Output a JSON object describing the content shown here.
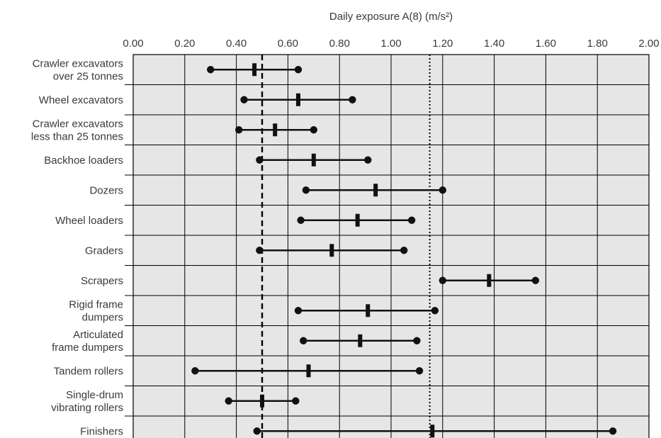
{
  "chart_data": {
    "type": "range-dot-plot",
    "xlabel": "Daily exposure A(8) (m/s²)",
    "xlim": [
      0,
      2
    ],
    "x_ticks": [
      "0.00",
      "0.20",
      "0.40",
      "0.60",
      "0.80",
      "1.00",
      "1.20",
      "1.40",
      "1.60",
      "1.80",
      "2.00"
    ],
    "grid": true,
    "reference_lines": [
      {
        "style": "dashed",
        "x": 0.5
      },
      {
        "style": "dotted",
        "x": 1.15
      }
    ],
    "categories": [
      [
        "Crawler excavators",
        "over 25 tonnes"
      ],
      [
        "Wheel excavators"
      ],
      [
        "Crawler excavators",
        "less than 25 tonnes"
      ],
      [
        "Backhoe loaders"
      ],
      [
        "Dozers"
      ],
      [
        "Wheel loaders"
      ],
      [
        "Graders"
      ],
      [
        "Scrapers"
      ],
      [
        "Rigid frame",
        "dumpers"
      ],
      [
        "Articulated",
        "frame dumpers"
      ],
      [
        "Tandem rollers"
      ],
      [
        "Single-drum",
        "vibrating rollers"
      ],
      [
        "Finishers"
      ]
    ],
    "series": [
      {
        "values": [
          {
            "min": 0.3,
            "typical": 0.47,
            "max": 0.64
          },
          {
            "min": 0.43,
            "typical": 0.64,
            "max": 0.85
          },
          {
            "min": 0.41,
            "typical": 0.55,
            "max": 0.7
          },
          {
            "min": 0.49,
            "typical": 0.7,
            "max": 0.91
          },
          {
            "min": 0.67,
            "typical": 0.94,
            "max": 1.2
          },
          {
            "min": 0.65,
            "typical": 0.87,
            "max": 1.08
          },
          {
            "min": 0.49,
            "typical": 0.77,
            "max": 1.05
          },
          {
            "min": 1.2,
            "typical": 1.38,
            "max": 1.56
          },
          {
            "min": 0.64,
            "typical": 0.91,
            "max": 1.17
          },
          {
            "min": 0.66,
            "typical": 0.88,
            "max": 1.1
          },
          {
            "min": 0.24,
            "typical": 0.68,
            "max": 1.11
          },
          {
            "min": 0.37,
            "typical": 0.5,
            "max": 0.63
          },
          {
            "min": 0.48,
            "typical": 1.16,
            "max": 1.86
          }
        ]
      }
    ]
  }
}
